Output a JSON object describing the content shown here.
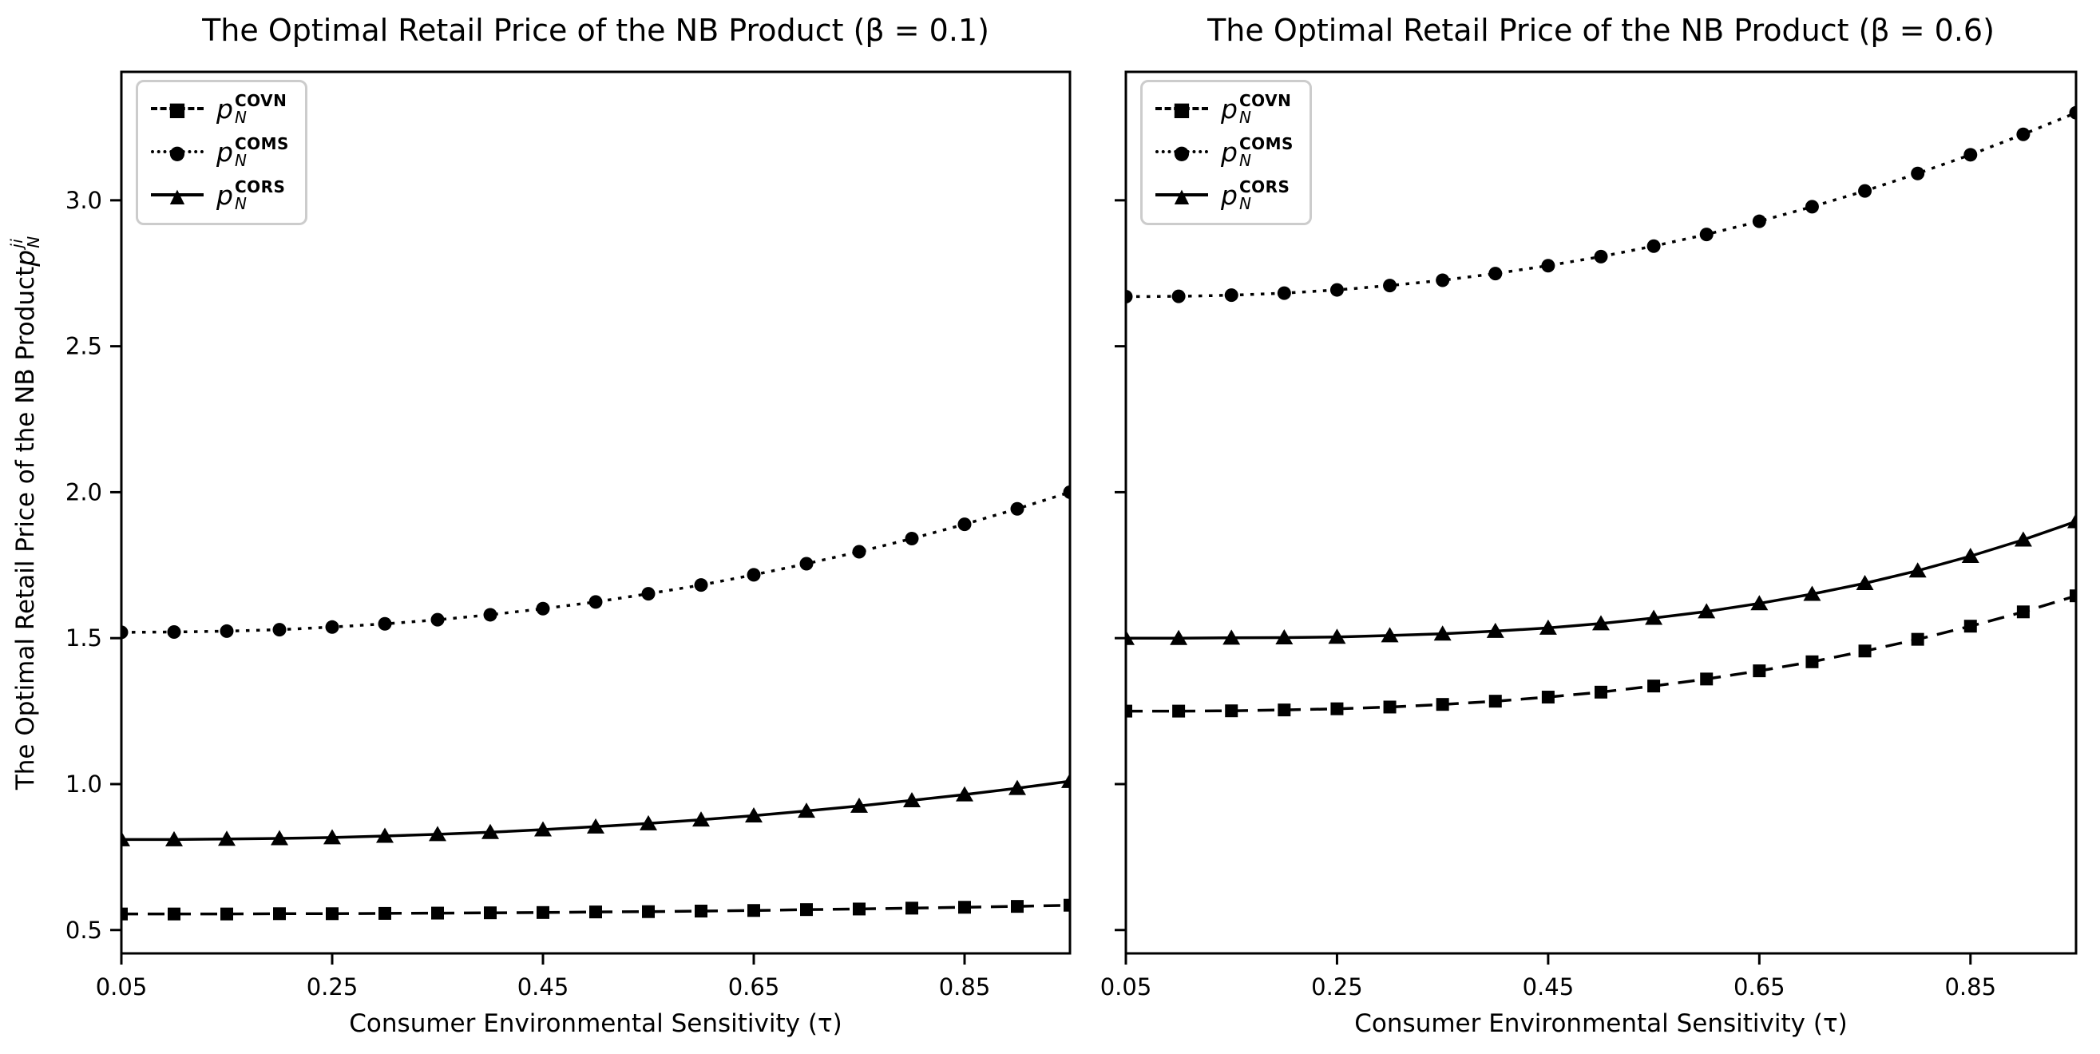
{
  "figure": {
    "background": "#ffffff",
    "line_color": "#000000",
    "legend_border_color": "#cccccc"
  },
  "chart_data": [
    {
      "type": "line",
      "title": "The Optimal Retail Price of the NB Product (β = 0.1)",
      "xlabel": "Consumer Environmental Sensitivity (τ)",
      "ylabel": "The Optimal Retail Price of the NB Product p_N^ji",
      "ylabel_text": "The Optimal Retail Price of the NB Product ",
      "ylabel_math": {
        "base": "p",
        "sub": "N",
        "sup": "ji"
      },
      "xlim": [
        0.05,
        0.95
      ],
      "ylim": [
        0.42,
        3.44
      ],
      "xticks": [
        "0.05",
        "0.25",
        "0.45",
        "0.65",
        "0.85"
      ],
      "yticks": [
        "0.5",
        "1.0",
        "1.5",
        "2.0",
        "2.5",
        "3.0"
      ],
      "ytick_labels_visible": true,
      "grid": false,
      "legend_position": "upper-left",
      "x": [
        0.05,
        0.1,
        0.15,
        0.2,
        0.25,
        0.3,
        0.35,
        0.4,
        0.45,
        0.5,
        0.55,
        0.6,
        0.65,
        0.7,
        0.75,
        0.8,
        0.85,
        0.9,
        0.95
      ],
      "series": [
        {
          "name": "p_N^COVN",
          "label_base": "p",
          "label_sub": "N",
          "label_sup": "COVN",
          "line_style": "dashed",
          "marker": "square",
          "color": "#000000",
          "values": [
            0.555,
            0.555,
            0.555,
            0.556,
            0.556,
            0.557,
            0.558,
            0.559,
            0.56,
            0.562,
            0.563,
            0.565,
            0.567,
            0.57,
            0.572,
            0.575,
            0.578,
            0.581,
            0.585
          ]
        },
        {
          "name": "p_N^COMS",
          "label_base": "p",
          "label_sub": "N",
          "label_sup": "COMS",
          "line_style": "dotted",
          "marker": "circle",
          "color": "#000000",
          "values": [
            1.52,
            1.521,
            1.524,
            1.529,
            1.538,
            1.549,
            1.563,
            1.58,
            1.601,
            1.624,
            1.652,
            1.682,
            1.717,
            1.755,
            1.796,
            1.841,
            1.89,
            1.943,
            2.0
          ]
        },
        {
          "name": "p_N^CORS",
          "label_base": "p",
          "label_sub": "N",
          "label_sup": "CORS",
          "line_style": "solid",
          "marker": "triangle",
          "color": "#000000",
          "values": [
            0.81,
            0.81,
            0.812,
            0.814,
            0.817,
            0.822,
            0.828,
            0.835,
            0.844,
            0.854,
            0.865,
            0.878,
            0.892,
            0.908,
            0.925,
            0.944,
            0.964,
            0.986,
            1.01
          ]
        }
      ]
    },
    {
      "type": "line",
      "title": "The Optimal Retail Price of the NB Product (β = 0.6)",
      "xlabel": "Consumer Environmental Sensitivity (τ)",
      "ylabel": "",
      "ylabel_text": "",
      "ylabel_math": {
        "base": "",
        "sub": "",
        "sup": ""
      },
      "xlim": [
        0.05,
        0.95
      ],
      "ylim": [
        0.42,
        3.44
      ],
      "xticks": [
        "0.05",
        "0.25",
        "0.45",
        "0.65",
        "0.85"
      ],
      "yticks": [
        "0.5",
        "1.0",
        "1.5",
        "2.0",
        "2.5",
        "3.0"
      ],
      "ytick_labels_visible": false,
      "grid": false,
      "legend_position": "upper-left",
      "x": [
        0.05,
        0.1,
        0.15,
        0.2,
        0.25,
        0.3,
        0.35,
        0.4,
        0.45,
        0.5,
        0.55,
        0.6,
        0.65,
        0.7,
        0.75,
        0.8,
        0.85,
        0.9,
        0.95
      ],
      "series": [
        {
          "name": "p_N^COVN",
          "label_base": "p",
          "label_sub": "N",
          "label_sup": "COVN",
          "line_style": "dashed",
          "marker": "square",
          "color": "#000000",
          "values": [
            1.25,
            1.25,
            1.251,
            1.254,
            1.258,
            1.264,
            1.273,
            1.284,
            1.298,
            1.315,
            1.336,
            1.36,
            1.388,
            1.419,
            1.456,
            1.496,
            1.541,
            1.59,
            1.645
          ]
        },
        {
          "name": "p_N^COMS",
          "label_base": "p",
          "label_sub": "N",
          "label_sup": "COMS",
          "line_style": "dotted",
          "marker": "circle",
          "color": "#000000",
          "values": [
            2.67,
            2.671,
            2.675,
            2.682,
            2.693,
            2.708,
            2.726,
            2.749,
            2.776,
            2.807,
            2.843,
            2.883,
            2.928,
            2.978,
            3.032,
            3.092,
            3.156,
            3.226,
            3.3
          ]
        },
        {
          "name": "p_N^CORS",
          "label_base": "p",
          "label_sub": "N",
          "label_sup": "CORS",
          "line_style": "solid",
          "marker": "triangle",
          "color": "#000000",
          "values": [
            1.5,
            1.5,
            1.501,
            1.502,
            1.504,
            1.509,
            1.515,
            1.524,
            1.535,
            1.55,
            1.569,
            1.591,
            1.619,
            1.651,
            1.688,
            1.731,
            1.781,
            1.837,
            1.9
          ]
        }
      ]
    }
  ]
}
